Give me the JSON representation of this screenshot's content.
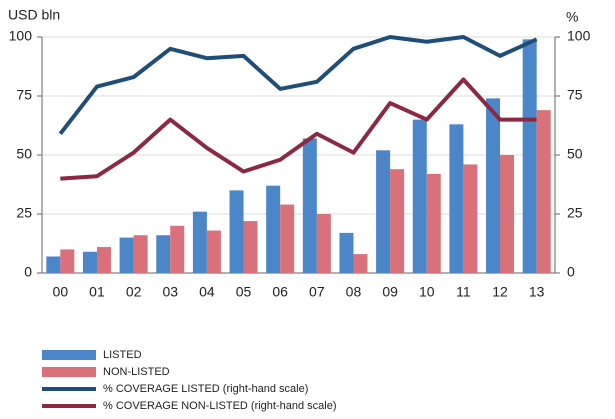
{
  "chart_data": {
    "type": "bar",
    "y_label": "USD bln",
    "y2_label": "%",
    "categories": [
      "00",
      "01",
      "02",
      "03",
      "04",
      "05",
      "06",
      "07",
      "08",
      "09",
      "10",
      "11",
      "12",
      "13"
    ],
    "series": [
      {
        "name": "LISTED",
        "type": "bar",
        "color": "#4a86c8",
        "values": [
          7,
          9,
          15,
          16,
          26,
          35,
          37,
          57,
          17,
          52,
          65,
          63,
          74,
          99
        ]
      },
      {
        "name": "NON-LISTED",
        "type": "bar",
        "color": "#d9707a",
        "values": [
          10,
          11,
          16,
          20,
          18,
          22,
          29,
          25,
          8,
          44,
          42,
          46,
          50,
          69
        ]
      },
      {
        "name": "% COVERAGE LISTED  (right-hand scale)",
        "type": "line",
        "axis": "y2",
        "color": "#1f4e79",
        "values": [
          59,
          79,
          83,
          95,
          91,
          92,
          78,
          81,
          95,
          100,
          98,
          100,
          92,
          99
        ]
      },
      {
        "name": "% COVERAGE NON-LISTED (right-hand scale)",
        "type": "line",
        "axis": "y2",
        "color": "#8b2942",
        "values": [
          40,
          41,
          51,
          65,
          53,
          43,
          48,
          59,
          51,
          72,
          65,
          82,
          65,
          65
        ]
      }
    ],
    "ylim": [
      0,
      100
    ],
    "yticks": [
      0,
      25,
      50,
      75,
      100
    ],
    "y2lim": [
      0,
      100
    ],
    "y2ticks": [
      0,
      25,
      50,
      75,
      100
    ],
    "grid": true
  }
}
